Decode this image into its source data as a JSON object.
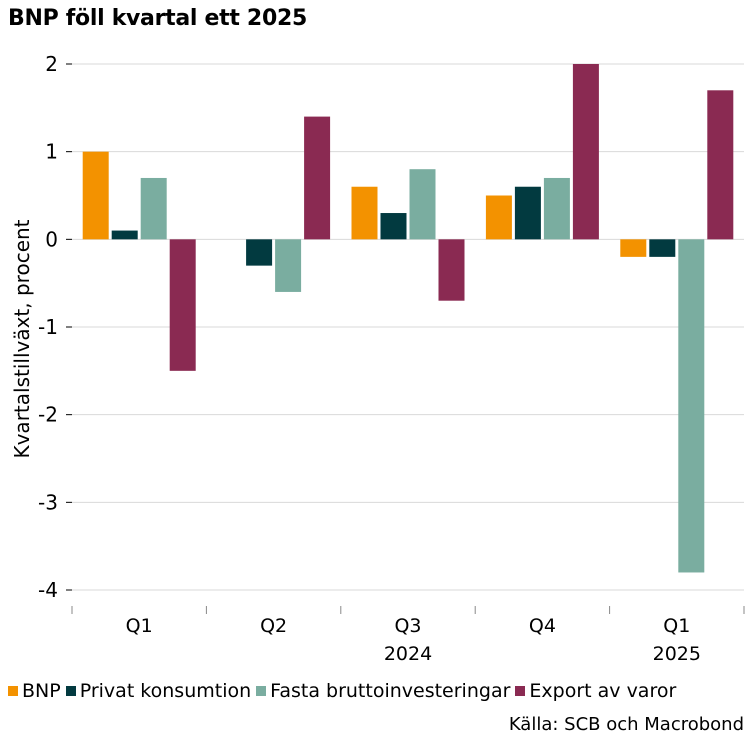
{
  "chart_data": {
    "type": "bar",
    "title": "BNP föll kvartal ett 2025",
    "ylabel": "Kvartalstillväxt, procent",
    "xlabel": "",
    "ylim": [
      -4,
      2
    ],
    "yticks": [
      2,
      1,
      0,
      -1,
      -2,
      -3,
      -4
    ],
    "categories": [
      "Q1",
      "Q2",
      "Q3",
      "Q4",
      "Q1"
    ],
    "years": [
      {
        "label": "2024",
        "center_category": 2
      },
      {
        "label": "2025",
        "center_category": 4
      }
    ],
    "series": [
      {
        "name": "BNP",
        "color": "#F39200",
        "values": [
          1.0,
          0.0,
          0.6,
          0.5,
          -0.2
        ]
      },
      {
        "name": "Privat konsumtion",
        "color": "#023A40",
        "values": [
          0.1,
          -0.3,
          0.3,
          0.6,
          -0.2
        ]
      },
      {
        "name": "Fasta bruttoinvesteringar",
        "color": "#7AADA0",
        "values": [
          0.7,
          -0.6,
          0.8,
          0.7,
          -3.8
        ]
      },
      {
        "name": "Export av varor",
        "color": "#8A2A52",
        "values": [
          -1.5,
          1.4,
          -0.7,
          2.0,
          1.7
        ]
      }
    ],
    "legend_position": "bottom",
    "grid": true
  },
  "source": "Källa: SCB och Macrobond"
}
